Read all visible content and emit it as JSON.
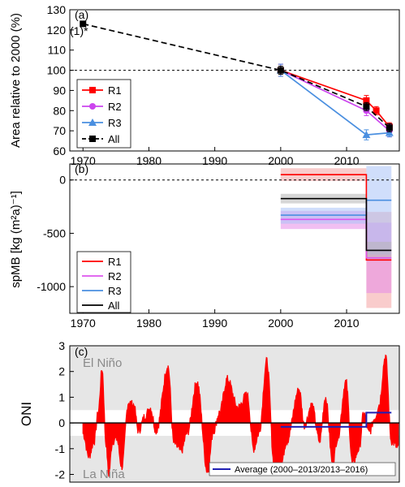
{
  "chart_data": [
    {
      "panel": "(a)",
      "type": "line",
      "ylabel": "Area relative to 2000 (%)",
      "xlim": [
        1968,
        2018
      ],
      "ylim": [
        60,
        130
      ],
      "xticks": [
        1970,
        1980,
        1990,
        2000,
        2010
      ],
      "yticks": [
        60,
        70,
        80,
        90,
        100,
        110,
        120,
        130
      ],
      "reference_line": 100,
      "annotation": "(1)*",
      "legend": {
        "position": "bottom-left"
      },
      "series": [
        {
          "name": "R1",
          "color": "#ff0000",
          "marker": "square",
          "dash": "solid",
          "points": [
            {
              "x": 2000,
              "y": 100,
              "err": 3
            },
            {
              "x": 2013,
              "y": 85,
              "err": 2.5
            },
            {
              "x": 2014.5,
              "y": 80,
              "err": 2
            },
            {
              "x": 2016.5,
              "y": 72,
              "err": 2
            }
          ]
        },
        {
          "name": "R2",
          "color": "#cc44ee",
          "marker": "circle",
          "dash": "solid",
          "points": [
            {
              "x": 2000,
              "y": 100,
              "err": 3
            },
            {
              "x": 2013,
              "y": 80,
              "err": 2.5
            },
            {
              "x": 2016.5,
              "y": 70,
              "err": 3
            }
          ]
        },
        {
          "name": "R3",
          "color": "#4a8fe0",
          "marker": "triangle",
          "dash": "solid",
          "points": [
            {
              "x": 2000,
              "y": 100,
              "err": 3
            },
            {
              "x": 2013,
              "y": 68,
              "err": 2.5
            },
            {
              "x": 2016.5,
              "y": 69,
              "err": 2
            }
          ]
        },
        {
          "name": "All",
          "color": "#000000",
          "marker": "square",
          "dash": "dashed",
          "points": [
            {
              "x": 1970,
              "y": 123,
              "err": 1
            },
            {
              "x": 2000,
              "y": 100,
              "err": 2
            },
            {
              "x": 2013,
              "y": 82,
              "err": 2
            },
            {
              "x": 2016.5,
              "y": 71.5,
              "err": 2
            }
          ]
        }
      ]
    },
    {
      "panel": "(b)",
      "type": "step",
      "ylabel": "spMB [kg (m²a)⁻¹]",
      "xlim": [
        1968,
        2018
      ],
      "ylim": [
        -1250,
        150
      ],
      "xticks": [
        1970,
        1980,
        1990,
        2000,
        2010
      ],
      "yticks": [
        0,
        -500,
        -1000
      ],
      "ytick_labels": [
        "0",
        "-500",
        "-1000"
      ],
      "reference_line": 0,
      "legend": {
        "position": "bottom-left"
      },
      "series": [
        {
          "name": "R1",
          "color": "#ff0000",
          "band_color": "#f4a3a3",
          "periods": [
            {
              "x0": 2000,
              "x1": 2013,
              "value": 50,
              "low": -10,
              "high": 110
            },
            {
              "x0": 2013,
              "x1": 2016.8,
              "value": -750,
              "low": -1200,
              "high": -300
            }
          ]
        },
        {
          "name": "R2",
          "color": "#dd55ee",
          "band_color": "#e58ae8",
          "periods": [
            {
              "x0": 2000,
              "x1": 2013,
              "value": -370,
              "low": -460,
              "high": -290
            },
            {
              "x0": 2013,
              "x1": 2016.8,
              "value": -730,
              "low": -1060,
              "high": -400
            }
          ]
        },
        {
          "name": "R3",
          "color": "#4a8fe0",
          "band_color": "#a9c3f7",
          "periods": [
            {
              "x0": 2000,
              "x1": 2013,
              "value": -330,
              "low": -410,
              "high": -260
            },
            {
              "x0": 2013,
              "x1": 2016.8,
              "value": -190,
              "low": -700,
              "high": 130
            }
          ]
        },
        {
          "name": "All",
          "color": "#000000",
          "band_color": "#b7b7b7",
          "periods": [
            {
              "x0": 2000,
              "x1": 2013,
              "value": -175,
              "low": -220,
              "high": -130
            },
            {
              "x0": 2013,
              "x1": 2016.8,
              "value": -660,
              "low": -740,
              "high": -580
            }
          ]
        }
      ]
    },
    {
      "panel": "(c)",
      "type": "area",
      "ylabel": "ONI",
      "xlim": [
        1968,
        2018
      ],
      "ylim": [
        -2.3,
        3
      ],
      "yticks": [
        -2,
        -1,
        0,
        1,
        2,
        3
      ],
      "threshold": 0.5,
      "color": "#ff0000",
      "label_top": "El Niño",
      "label_bottom": "La Niña",
      "events": [
        [
          1970.0,
          -0.4
        ],
        [
          1970.9,
          -1.3
        ],
        [
          1971.7,
          -0.7
        ],
        [
          1972.3,
          0.4
        ],
        [
          1972.9,
          2.1
        ],
        [
          1973.5,
          -0.8
        ],
        [
          1973.9,
          -2.0
        ],
        [
          1974.5,
          -0.7
        ],
        [
          1975.1,
          -0.6
        ],
        [
          1975.9,
          -1.7
        ],
        [
          1976.9,
          0.8
        ],
        [
          1977.7,
          0.7
        ],
        [
          1978.4,
          -0.3
        ],
        [
          1979.5,
          0.3
        ],
        [
          1980.2,
          0.6
        ],
        [
          1981.1,
          -0.3
        ],
        [
          1982.9,
          2.2
        ],
        [
          1983.8,
          -0.8
        ],
        [
          1984.9,
          -1.1
        ],
        [
          1985.8,
          -0.4
        ],
        [
          1987.3,
          1.6
        ],
        [
          1988.9,
          -1.9
        ],
        [
          1989.8,
          -0.3
        ],
        [
          1990.7,
          0.4
        ],
        [
          1991.9,
          1.7
        ],
        [
          1993.5,
          0.6
        ],
        [
          1994.9,
          1.1
        ],
        [
          1995.9,
          -1.0
        ],
        [
          1996.7,
          -0.4
        ],
        [
          1997.9,
          2.4
        ],
        [
          1999.0,
          -1.6
        ],
        [
          2000.0,
          -1.7
        ],
        [
          2000.9,
          -0.7
        ],
        [
          2002.8,
          1.3
        ],
        [
          2003.6,
          -0.1
        ],
        [
          2004.7,
          0.7
        ],
        [
          2005.9,
          -0.7
        ],
        [
          2006.8,
          1.0
        ],
        [
          2007.9,
          -1.6
        ],
        [
          2008.6,
          -0.6
        ],
        [
          2009.9,
          1.6
        ],
        [
          2010.9,
          -1.6
        ],
        [
          2011.9,
          -1.0
        ],
        [
          2012.6,
          0.4
        ],
        [
          2013.4,
          -0.4
        ],
        [
          2014.3,
          0.2
        ],
        [
          2014.9,
          0.7
        ],
        [
          2015.9,
          2.6
        ],
        [
          2016.8,
          -0.7
        ],
        [
          2017.9,
          -1.0
        ]
      ],
      "average_line": {
        "color": "#1f1fb3",
        "periods": [
          {
            "x0": 2000,
            "x1": 2013,
            "value": -0.15
          },
          {
            "x0": 2013,
            "x1": 2016.8,
            "value": 0.4
          }
        ]
      },
      "legend": {
        "position": "bottom-right",
        "label": "Average (2000–2013/2013–2016)"
      }
    }
  ]
}
